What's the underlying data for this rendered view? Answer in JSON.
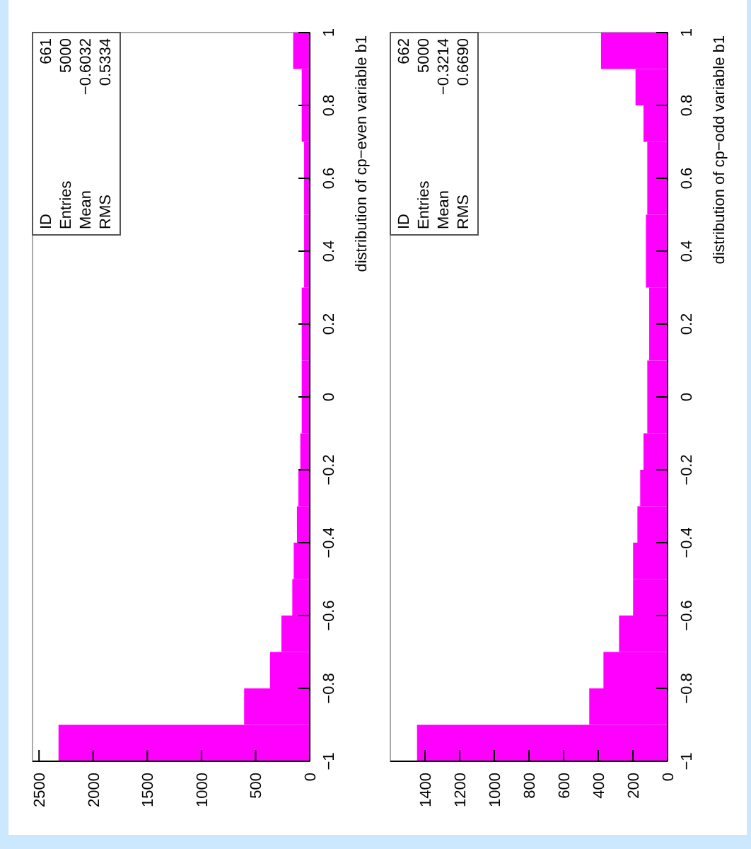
{
  "chart_data": [
    {
      "type": "histogram",
      "orientation": "horizontal",
      "ylabel": "distribution of cp−even variable b1",
      "color": "#ff00ff",
      "bins": [
        -1,
        -0.9,
        -0.8,
        -0.7,
        -0.6,
        -0.5,
        -0.4,
        -0.3,
        -0.2,
        -0.1,
        0,
        0.1,
        0.2,
        0.3,
        0.4,
        0.5,
        0.6,
        0.7,
        0.8,
        0.9,
        1
      ],
      "values": [
        2320,
        606,
        366,
        262,
        161,
        148,
        118,
        105,
        87,
        74,
        74,
        74,
        74,
        52,
        52,
        52,
        52,
        74,
        74,
        153
      ],
      "ylim": [
        -1,
        1
      ],
      "yticks": [
        {
          "value": -1,
          "label": "−1"
        },
        {
          "value": -0.8,
          "label": "−0.8"
        },
        {
          "value": -0.6,
          "label": "−0.6"
        },
        {
          "value": -0.4,
          "label": "−0.4"
        },
        {
          "value": -0.2,
          "label": "−0.2"
        },
        0,
        0.2,
        0.4,
        0.6,
        0.8,
        1
      ],
      "xlim": [
        2560,
        0
      ],
      "xticks": [
        0,
        500,
        1000,
        1500,
        2000,
        2500
      ],
      "annotations": [
        "ID 661",
        "Entries 5000",
        "Mean −0.6032",
        "RMS 0.5334"
      ]
    },
    {
      "type": "histogram",
      "orientation": "horizontal",
      "ylabel": "distribution of cp−odd variable b1",
      "color": "#ff00ff",
      "bins": [
        -1,
        -0.9,
        -0.8,
        -0.7,
        -0.6,
        -0.5,
        -0.4,
        -0.3,
        -0.2,
        -0.1,
        0,
        0.1,
        0.2,
        0.3,
        0.4,
        0.5,
        0.6,
        0.7,
        0.8,
        0.9,
        1
      ],
      "values": [
        1446,
        452,
        370,
        280,
        199,
        199,
        174,
        158,
        139,
        117,
        117,
        106,
        106,
        125,
        125,
        117,
        117,
        139,
        185,
        384
      ],
      "ylim": [
        -1,
        1
      ],
      "yticks": [
        {
          "value": -1,
          "label": "−1"
        },
        {
          "value": -0.8,
          "label": "−0.8"
        },
        {
          "value": -0.6,
          "label": "−0.6"
        },
        {
          "value": -0.4,
          "label": "−0.4"
        },
        {
          "value": -0.2,
          "label": "−0.2"
        },
        0,
        0.2,
        0.4,
        0.6,
        0.8,
        1
      ],
      "xlim": [
        1600,
        0
      ],
      "xticks": [
        0,
        200,
        400,
        600,
        800,
        1000,
        1200,
        1400
      ],
      "annotations": [
        "ID 662",
        "Entries 5000",
        "Mean −0.3214",
        "RMS 0.6690"
      ]
    }
  ]
}
